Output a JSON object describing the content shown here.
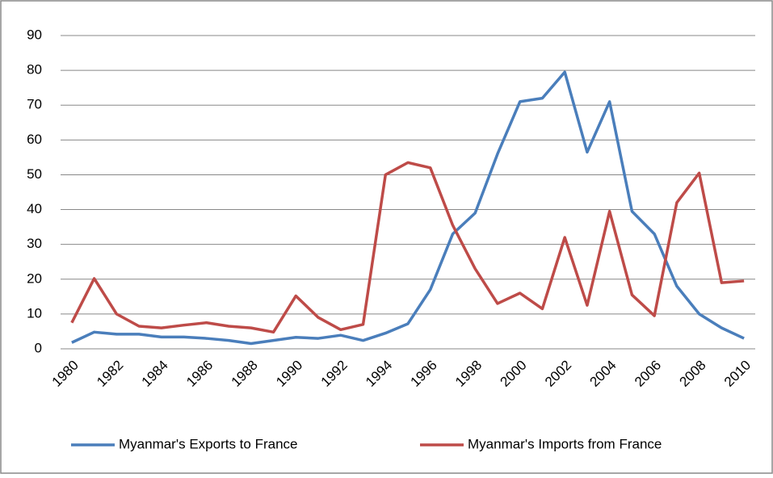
{
  "chart_data": {
    "type": "line",
    "categories": [
      "1980",
      null,
      "1982",
      null,
      "1984",
      null,
      "1986",
      null,
      "1988",
      null,
      "1990",
      null,
      "1992",
      null,
      "1994",
      null,
      "1996",
      null,
      "1998",
      null,
      "2000",
      null,
      "2002",
      null,
      "2004",
      null,
      "2006",
      null,
      "2008",
      null,
      "2010"
    ],
    "series": [
      {
        "name": "Myanmar's Exports to France",
        "color": "#4a7ebb",
        "values": [
          1.8,
          4.8,
          4.2,
          4.2,
          3.4,
          3.4,
          3.0,
          2.4,
          1.5,
          2.4,
          3.3,
          3.0,
          3.9,
          2.4,
          4.5,
          7.2,
          17,
          33,
          39,
          56,
          71,
          72,
          79.5,
          56.5,
          71,
          39.5,
          33,
          18,
          10,
          6,
          3
        ]
      },
      {
        "name": "Myanmar's Imports from France",
        "color": "#be4b48",
        "values": [
          7.5,
          20.2,
          10,
          6.5,
          6,
          6.8,
          7.5,
          6.5,
          6,
          4.8,
          15.2,
          9,
          5.5,
          7,
          50,
          53.5,
          52,
          35.5,
          23,
          13,
          16,
          11.5,
          32,
          12.5,
          39.5,
          15.5,
          9.5,
          42,
          50.5,
          19,
          19.5
        ]
      }
    ],
    "ylim": [
      0,
      90
    ],
    "yticks": [
      0,
      10,
      20,
      30,
      40,
      50,
      60,
      70,
      80,
      90
    ],
    "grid": true,
    "legend": "bottom"
  }
}
